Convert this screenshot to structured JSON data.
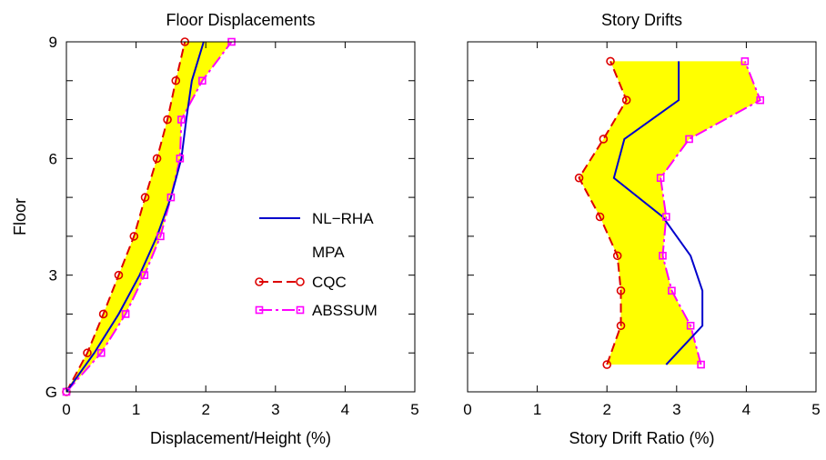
{
  "chart_data": [
    {
      "type": "line",
      "title": "Floor Displacements",
      "xlabel": "Displacement/Height (%)",
      "ylabel": "Floor",
      "xlim": [
        0,
        5
      ],
      "ylim": [
        0,
        9
      ],
      "xticks": [
        "0",
        "1",
        "2",
        "3",
        "4",
        "5"
      ],
      "yticks": [
        {
          "value": 0,
          "label": "G"
        },
        {
          "value": 3,
          "label": "3"
        },
        {
          "value": 6,
          "label": "6"
        },
        {
          "value": 9,
          "label": "9"
        }
      ],
      "band_color": "#ffff00",
      "series": [
        {
          "name": "NL−RHA",
          "color": "#0000cc",
          "marker": "none",
          "x": [
            0,
            0.4,
            0.75,
            1.05,
            1.3,
            1.5,
            1.65,
            1.72,
            1.8,
            1.97
          ],
          "y": [
            0,
            1,
            2,
            3,
            4,
            5,
            6,
            7,
            8,
            9
          ]
        },
        {
          "name": "CQC",
          "color": "#dd0000",
          "marker": "circle",
          "dash": "10,5",
          "x": [
            0,
            0.3,
            0.53,
            0.75,
            0.97,
            1.13,
            1.3,
            1.45,
            1.57,
            1.7
          ],
          "y": [
            0,
            1,
            2,
            3,
            4,
            5,
            6,
            7,
            8,
            9
          ]
        },
        {
          "name": "ABSSUM",
          "color": "#ff00ff",
          "marker": "square",
          "dash": "14,4,3,4",
          "x": [
            0,
            0.5,
            0.85,
            1.12,
            1.35,
            1.5,
            1.63,
            1.65,
            1.95,
            2.37
          ],
          "y": [
            0,
            1,
            2,
            3,
            4,
            5,
            6,
            7,
            8,
            9
          ]
        }
      ]
    },
    {
      "type": "line",
      "title": "Story Drifts",
      "xlabel": "Story Drift Ratio (%)",
      "ylabel": "",
      "xlim": [
        0,
        5
      ],
      "ylim": [
        0,
        9
      ],
      "xticks": [
        "0",
        "1",
        "2",
        "3",
        "4",
        "5"
      ],
      "yticks": [],
      "band_color": "#ffff00",
      "series": [
        {
          "name": "NL−RHA",
          "color": "#0000cc",
          "marker": "none",
          "x": [
            2.85,
            3.37,
            3.37,
            3.2,
            2.8,
            2.1,
            2.25,
            3.03,
            3.03
          ],
          "y": [
            0.7,
            1.7,
            2.6,
            3.5,
            4.5,
            5.5,
            6.5,
            7.5,
            8.5
          ]
        },
        {
          "name": "CQC",
          "color": "#dd0000",
          "marker": "circle",
          "dash": "10,5",
          "x": [
            2.0,
            2.2,
            2.2,
            2.15,
            1.9,
            1.6,
            1.95,
            2.28,
            2.05
          ],
          "y": [
            0.7,
            1.7,
            2.6,
            3.5,
            4.5,
            5.5,
            6.5,
            7.5,
            8.5
          ]
        },
        {
          "name": "ABSSUM",
          "color": "#ff00ff",
          "marker": "square",
          "dash": "14,4,3,4",
          "x": [
            3.35,
            3.2,
            2.93,
            2.8,
            2.85,
            2.77,
            3.18,
            4.2,
            3.98
          ],
          "y": [
            0.7,
            1.7,
            2.6,
            3.5,
            4.5,
            5.5,
            6.5,
            7.5,
            8.5
          ]
        }
      ]
    }
  ],
  "legend": {
    "items": [
      {
        "label": "NL−RHA",
        "series": 0
      },
      {
        "label": "MPA",
        "series": -1
      },
      {
        "label": "CQC",
        "series": 1
      },
      {
        "label": "ABSSUM",
        "series": 2
      }
    ]
  }
}
